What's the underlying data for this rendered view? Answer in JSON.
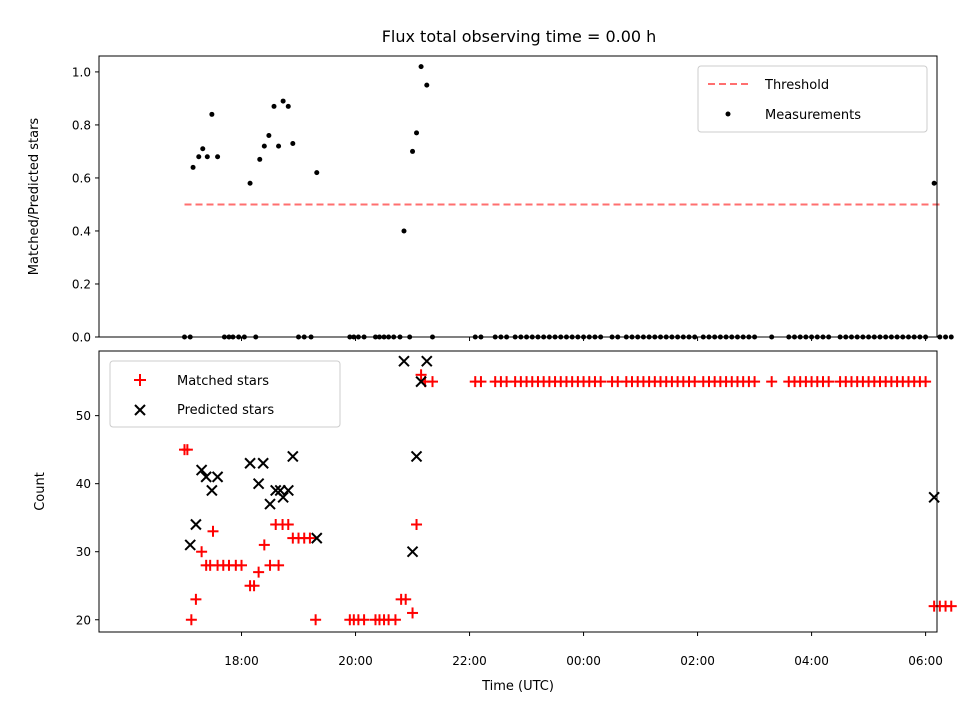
{
  "colors": {
    "threshold": "#ff6f6f",
    "measurement": "#000000",
    "matched": "#ff0000",
    "predicted": "#000000"
  },
  "chart_data": [
    {
      "type": "scatter",
      "title": "Flux total observing time = 0.00 h",
      "ylabel": "Matched/Predicted stars",
      "ylim": [
        0,
        1.06
      ],
      "yticks": [
        "0.0",
        "0.2",
        "0.4",
        "0.6",
        "0.8",
        "1.0"
      ],
      "x_unit": "hours since 16:00 UTC",
      "xlim": [
        15.5,
        30.2
      ],
      "legend": {
        "position": "top-right",
        "entries": [
          "Threshold",
          "Measurements"
        ]
      },
      "threshold": {
        "name": "Threshold",
        "value": 0.5,
        "x_range": [
          17.0,
          30.3
        ]
      },
      "series": [
        {
          "name": "Measurements",
          "points": [
            [
              17.0,
              0
            ],
            [
              17.1,
              0
            ],
            [
              17.15,
              0.64
            ],
            [
              17.25,
              0.68
            ],
            [
              17.32,
              0.71
            ],
            [
              17.4,
              0.68
            ],
            [
              17.48,
              0.84
            ],
            [
              17.58,
              0.68
            ],
            [
              17.7,
              0
            ],
            [
              17.78,
              0
            ],
            [
              17.85,
              0
            ],
            [
              17.95,
              0
            ],
            [
              18.05,
              0
            ],
            [
              18.15,
              0.58
            ],
            [
              18.25,
              0
            ],
            [
              18.32,
              0.67
            ],
            [
              18.4,
              0.72
            ],
            [
              18.48,
              0.76
            ],
            [
              18.57,
              0.87
            ],
            [
              18.65,
              0.72
            ],
            [
              18.73,
              0.89
            ],
            [
              18.82,
              0.87
            ],
            [
              18.9,
              0.73
            ],
            [
              19.0,
              0
            ],
            [
              19.1,
              0
            ],
            [
              19.22,
              0
            ],
            [
              19.32,
              0.62
            ],
            [
              19.9,
              0
            ],
            [
              19.97,
              0
            ],
            [
              20.05,
              0
            ],
            [
              20.15,
              0
            ],
            [
              20.35,
              0
            ],
            [
              20.42,
              0
            ],
            [
              20.5,
              0
            ],
            [
              20.58,
              0
            ],
            [
              20.67,
              0
            ],
            [
              20.78,
              0
            ],
            [
              20.85,
              0.4
            ],
            [
              20.95,
              0
            ],
            [
              21.0,
              0.7
            ],
            [
              21.07,
              0.77
            ],
            [
              21.15,
              1.02
            ],
            [
              21.25,
              0.95
            ],
            [
              21.35,
              0
            ],
            [
              22.1,
              0
            ],
            [
              22.2,
              0
            ],
            [
              22.45,
              0
            ],
            [
              22.55,
              0
            ],
            [
              22.65,
              0
            ],
            [
              22.8,
              0
            ],
            [
              22.9,
              0
            ],
            [
              23.0,
              0
            ],
            [
              23.1,
              0
            ],
            [
              23.2,
              0
            ],
            [
              23.3,
              0
            ],
            [
              23.4,
              0
            ],
            [
              23.5,
              0
            ],
            [
              23.6,
              0
            ],
            [
              23.7,
              0
            ],
            [
              23.8,
              0
            ],
            [
              23.9,
              0
            ],
            [
              24.0,
              0
            ],
            [
              24.1,
              0
            ],
            [
              24.2,
              0
            ],
            [
              24.3,
              0
            ],
            [
              24.5,
              0
            ],
            [
              24.6,
              0
            ],
            [
              24.75,
              0
            ],
            [
              24.85,
              0
            ],
            [
              24.95,
              0
            ],
            [
              25.05,
              0
            ],
            [
              25.15,
              0
            ],
            [
              25.25,
              0
            ],
            [
              25.35,
              0
            ],
            [
              25.45,
              0
            ],
            [
              25.55,
              0
            ],
            [
              25.65,
              0
            ],
            [
              25.75,
              0
            ],
            [
              25.85,
              0
            ],
            [
              25.95,
              0
            ],
            [
              26.1,
              0
            ],
            [
              26.2,
              0
            ],
            [
              26.3,
              0
            ],
            [
              26.4,
              0
            ],
            [
              26.5,
              0
            ],
            [
              26.6,
              0
            ],
            [
              26.7,
              0
            ],
            [
              26.8,
              0
            ],
            [
              26.9,
              0
            ],
            [
              27.0,
              0
            ],
            [
              27.3,
              0
            ],
            [
              27.6,
              0
            ],
            [
              27.7,
              0
            ],
            [
              27.8,
              0
            ],
            [
              27.9,
              0
            ],
            [
              28.0,
              0
            ],
            [
              28.1,
              0
            ],
            [
              28.2,
              0
            ],
            [
              28.3,
              0
            ],
            [
              28.5,
              0
            ],
            [
              28.6,
              0
            ],
            [
              28.7,
              0
            ],
            [
              28.8,
              0
            ],
            [
              28.9,
              0
            ],
            [
              29.0,
              0
            ],
            [
              29.1,
              0
            ],
            [
              29.2,
              0
            ],
            [
              29.3,
              0
            ],
            [
              29.4,
              0
            ],
            [
              29.5,
              0
            ],
            [
              29.6,
              0
            ],
            [
              29.7,
              0
            ],
            [
              29.8,
              0
            ],
            [
              29.9,
              0
            ],
            [
              30.0,
              0
            ],
            [
              30.15,
              0.58
            ],
            [
              30.25,
              0
            ],
            [
              30.35,
              0
            ],
            [
              30.45,
              0
            ]
          ]
        }
      ]
    },
    {
      "type": "scatter",
      "xlabel": "Time (UTC)",
      "ylabel": "Count",
      "ylim": [
        18.2,
        59.5
      ],
      "yticks": [
        "20",
        "30",
        "40",
        "50"
      ],
      "x_unit": "hours since 16:00 UTC",
      "xlim": [
        15.5,
        30.2
      ],
      "xticks": [
        {
          "label": "18:00",
          "x": 18
        },
        {
          "label": "20:00",
          "x": 20
        },
        {
          "label": "22:00",
          "x": 22
        },
        {
          "label": "00:00",
          "x": 24
        },
        {
          "label": "02:00",
          "x": 26
        },
        {
          "label": "04:00",
          "x": 28
        },
        {
          "label": "06:00",
          "x": 30
        }
      ],
      "legend": {
        "position": "top-left",
        "entries": [
          "Matched stars",
          "Predicted stars"
        ]
      },
      "series": [
        {
          "name": "Matched stars",
          "marker": "+",
          "points": [
            [
              17.0,
              45
            ],
            [
              17.05,
              45
            ],
            [
              17.12,
              20
            ],
            [
              17.2,
              23
            ],
            [
              17.3,
              30
            ],
            [
              17.38,
              28
            ],
            [
              17.45,
              28
            ],
            [
              17.5,
              33
            ],
            [
              17.58,
              28
            ],
            [
              17.68,
              28
            ],
            [
              17.78,
              28
            ],
            [
              17.9,
              28
            ],
            [
              18.0,
              28
            ],
            [
              18.15,
              25
            ],
            [
              18.22,
              25
            ],
            [
              18.3,
              27
            ],
            [
              18.4,
              31
            ],
            [
              18.5,
              28
            ],
            [
              18.6,
              34
            ],
            [
              18.65,
              28
            ],
            [
              18.72,
              34
            ],
            [
              18.82,
              34
            ],
            [
              18.9,
              32
            ],
            [
              19.0,
              32
            ],
            [
              19.1,
              32
            ],
            [
              19.2,
              32
            ],
            [
              19.3,
              20
            ],
            [
              19.9,
              20
            ],
            [
              19.97,
              20
            ],
            [
              20.05,
              20
            ],
            [
              20.15,
              20
            ],
            [
              20.35,
              20
            ],
            [
              20.42,
              20
            ],
            [
              20.5,
              20
            ],
            [
              20.58,
              20
            ],
            [
              20.7,
              20
            ],
            [
              20.8,
              23
            ],
            [
              20.88,
              23
            ],
            [
              21.0,
              21
            ],
            [
              21.07,
              34
            ],
            [
              21.15,
              56
            ],
            [
              21.22,
              55
            ],
            [
              21.35,
              55
            ],
            [
              22.1,
              55
            ],
            [
              22.2,
              55
            ],
            [
              22.45,
              55
            ],
            [
              22.55,
              55
            ],
            [
              22.65,
              55
            ],
            [
              22.8,
              55
            ],
            [
              22.9,
              55
            ],
            [
              23.0,
              55
            ],
            [
              23.1,
              55
            ],
            [
              23.2,
              55
            ],
            [
              23.3,
              55
            ],
            [
              23.4,
              55
            ],
            [
              23.5,
              55
            ],
            [
              23.6,
              55
            ],
            [
              23.7,
              55
            ],
            [
              23.8,
              55
            ],
            [
              23.9,
              55
            ],
            [
              24.0,
              55
            ],
            [
              24.1,
              55
            ],
            [
              24.2,
              55
            ],
            [
              24.3,
              55
            ],
            [
              24.5,
              55
            ],
            [
              24.6,
              55
            ],
            [
              24.75,
              55
            ],
            [
              24.85,
              55
            ],
            [
              24.95,
              55
            ],
            [
              25.05,
              55
            ],
            [
              25.15,
              55
            ],
            [
              25.25,
              55
            ],
            [
              25.35,
              55
            ],
            [
              25.45,
              55
            ],
            [
              25.55,
              55
            ],
            [
              25.65,
              55
            ],
            [
              25.75,
              55
            ],
            [
              25.85,
              55
            ],
            [
              25.95,
              55
            ],
            [
              26.1,
              55
            ],
            [
              26.2,
              55
            ],
            [
              26.3,
              55
            ],
            [
              26.4,
              55
            ],
            [
              26.5,
              55
            ],
            [
              26.6,
              55
            ],
            [
              26.7,
              55
            ],
            [
              26.8,
              55
            ],
            [
              26.9,
              55
            ],
            [
              27.0,
              55
            ],
            [
              27.3,
              55
            ],
            [
              27.6,
              55
            ],
            [
              27.7,
              55
            ],
            [
              27.8,
              55
            ],
            [
              27.9,
              55
            ],
            [
              28.0,
              55
            ],
            [
              28.1,
              55
            ],
            [
              28.2,
              55
            ],
            [
              28.3,
              55
            ],
            [
              28.5,
              55
            ],
            [
              28.6,
              55
            ],
            [
              28.7,
              55
            ],
            [
              28.8,
              55
            ],
            [
              28.9,
              55
            ],
            [
              29.0,
              55
            ],
            [
              29.1,
              55
            ],
            [
              29.2,
              55
            ],
            [
              29.3,
              55
            ],
            [
              29.4,
              55
            ],
            [
              29.5,
              55
            ],
            [
              29.6,
              55
            ],
            [
              29.7,
              55
            ],
            [
              29.8,
              55
            ],
            [
              29.9,
              55
            ],
            [
              30.0,
              55
            ],
            [
              30.15,
              22
            ],
            [
              30.25,
              22
            ],
            [
              30.35,
              22
            ],
            [
              30.45,
              22
            ]
          ]
        },
        {
          "name": "Predicted stars",
          "marker": "x",
          "points": [
            [
              17.1,
              31
            ],
            [
              17.2,
              34
            ],
            [
              17.3,
              42
            ],
            [
              17.38,
              41
            ],
            [
              17.48,
              39
            ],
            [
              17.58,
              41
            ],
            [
              18.15,
              43
            ],
            [
              18.3,
              40
            ],
            [
              18.38,
              43
            ],
            [
              18.5,
              37
            ],
            [
              18.6,
              39
            ],
            [
              18.68,
              39
            ],
            [
              18.73,
              38
            ],
            [
              18.82,
              39
            ],
            [
              18.9,
              44
            ],
            [
              19.32,
              32
            ],
            [
              20.85,
              58
            ],
            [
              21.0,
              30
            ],
            [
              21.07,
              44
            ],
            [
              21.15,
              55
            ],
            [
              21.25,
              58
            ],
            [
              30.15,
              38
            ]
          ]
        }
      ]
    }
  ]
}
